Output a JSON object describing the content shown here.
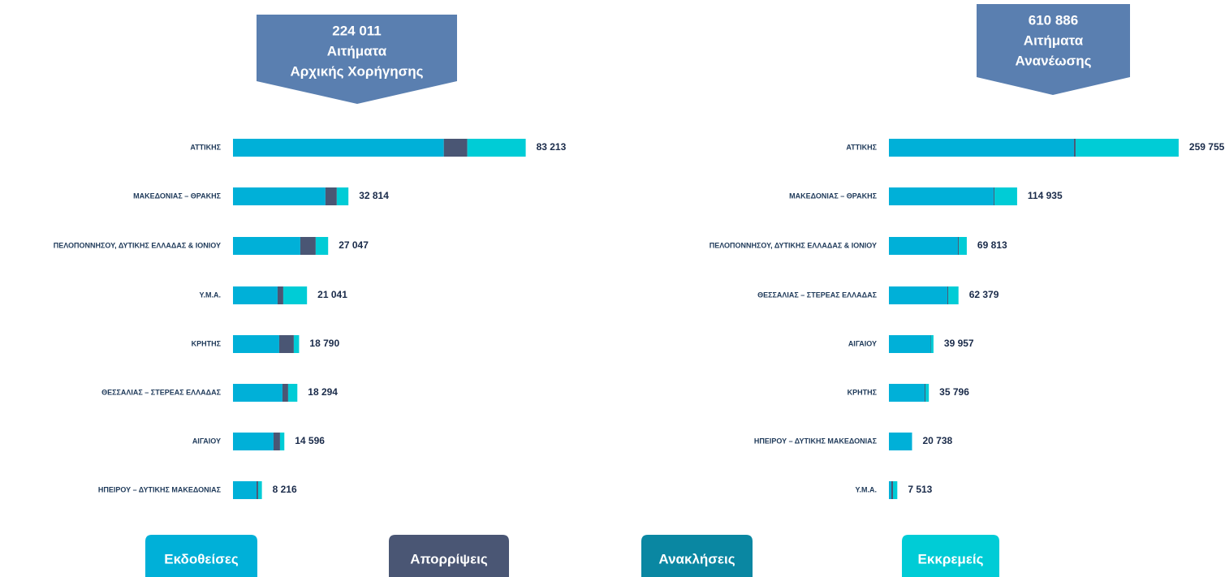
{
  "legend": [
    {
      "name": "Εκδοθείσες",
      "color": "#00b0d8"
    },
    {
      "name": "Απορρίψεις",
      "color": "#4a5674"
    },
    {
      "name": "Ανακλήσεις",
      "color": "#0a87a2"
    },
    {
      "name": "Εκκρεμείς",
      "color": "#00ccd6"
    }
  ],
  "chart_data": [
    {
      "type": "bar",
      "orientation": "horizontal",
      "stacked": true,
      "title": [
        "224 011",
        "Αιτήματα",
        "Αρχικής Χορήγησης"
      ],
      "categories": [
        "ΑΤΤΙΚΗΣ",
        "ΜΑΚΕΔΟΝΙΑΣ – ΘΡΑΚΗΣ",
        "ΠΕΛΟΠΟΝΝΗΣΟΥ, ΔΥΤΙΚΗΣ ΕΛΛΑΔΑΣ & ΙΟΝΙΟΥ",
        "Υ.Μ.Α.",
        "ΚΡΗΤΗΣ",
        "ΘΕΣΣΑΛΙΑΣ – ΣΤΕΡΕΑΣ ΕΛΛΑΔΑΣ",
        "ΑΙΓΑΙΟΥ",
        "ΗΠΕΙΡΟΥ – ΔΥΤΙΚΗΣ ΜΑΚΕΔΟΝΙΑΣ"
      ],
      "series": [
        {
          "values": [
            59930,
            26280,
            19133,
            12679,
            13140,
            14062,
            11526,
            6685
          ]
        },
        {
          "values": [
            6685,
            3227,
            4380,
            1614,
            4149,
            1614,
            1844,
            461
          ]
        },
        {
          "values": [
            0,
            0,
            0,
            0,
            0,
            0,
            0,
            0
          ]
        },
        {
          "values": [
            16598,
            3307,
            3534,
            6748,
            1501,
            2618,
            1226,
            1070
          ]
        }
      ],
      "totals": [
        83213,
        32814,
        27047,
        21041,
        18790,
        18294,
        14596,
        8216
      ],
      "value_labels": [
        "83 213",
        "32 814",
        "27 047",
        "21 041",
        "18 790",
        "18 294",
        "14 596",
        "8 216"
      ],
      "xlim": [
        0,
        90000
      ]
    },
    {
      "type": "bar",
      "orientation": "horizontal",
      "stacked": true,
      "title": [
        "610 886",
        "Αιτήματα",
        "Ανανέωσης"
      ],
      "categories": [
        "ΑΤΤΙΚΗΣ",
        "ΜΑΚΕΔΟΝΙΑΣ – ΘΡΑΚΗΣ",
        "ΠΕΛΟΠΟΝΝΗΣΟΥ, ΔΥΤΙΚΗΣ ΕΛΛΑΔΑΣ & ΙΟΝΙΟΥ",
        "ΘΕΣΣΑΛΙΑΣ – ΣΤΕΡΕΑΣ ΕΛΛΑΔΑΣ",
        "ΑΙΓΑΙΟΥ",
        "ΚΡΗΤΗΣ",
        "ΗΠΕΙΡΟΥ – ΔΥΤΙΚΗΣ ΜΑΚΕΔΟΝΙΑΣ",
        "Υ.Μ.Α."
      ],
      "series": [
        {
          "values": [
            165900,
            93860,
            61846,
            52387,
            37108,
            32014,
            20738,
            2183
          ]
        },
        {
          "values": [
            1455,
            728,
            728,
            728,
            364,
            728,
            0,
            1455
          ]
        },
        {
          "values": [
            0,
            0,
            0,
            0,
            0,
            0,
            0,
            0
          ]
        },
        {
          "values": [
            92400,
            20347,
            7239,
            9264,
            2485,
            3054,
            0,
            3875
          ]
        }
      ],
      "totals": [
        259755,
        114935,
        69813,
        62379,
        39957,
        35796,
        20738,
        7513
      ],
      "value_labels": [
        "259 755",
        "114 935",
        "69 813",
        "62 379",
        "39 957",
        "35 796",
        "20 738",
        "7 513"
      ],
      "xlim": [
        0,
        270000
      ]
    }
  ]
}
